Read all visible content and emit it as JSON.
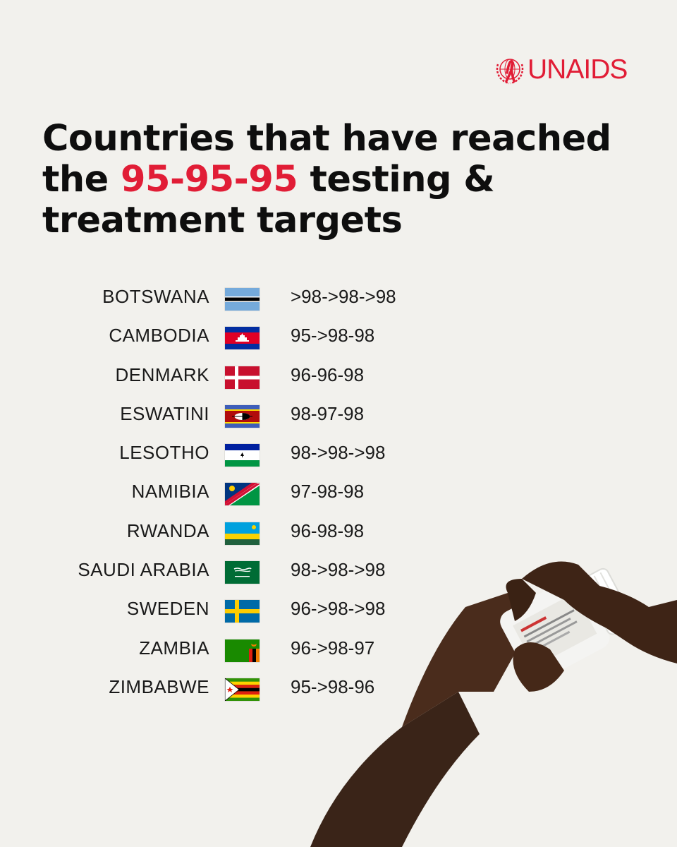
{
  "logo": {
    "text_un": "UN",
    "text_aids": "AIDS",
    "emblem_icon": "red-ribbon-wreath-icon",
    "brand_color": "#e11d36"
  },
  "title": {
    "line1": "Countries that have reached",
    "line2_pre": "the ",
    "line2_highlight": "95-95-95",
    "line2_post": " testing &",
    "line3": "treatment targets",
    "highlight_color": "#e11d36"
  },
  "rows": [
    {
      "country": "BOTSWANA",
      "flag_icon": "botswana-flag-icon",
      "value": ">98->98->98"
    },
    {
      "country": "CAMBODIA",
      "flag_icon": "cambodia-flag-icon",
      "value": "95->98-98"
    },
    {
      "country": "DENMARK",
      "flag_icon": "denmark-flag-icon",
      "value": "96-96-98"
    },
    {
      "country": "ESWATINI",
      "flag_icon": "eswatini-flag-icon",
      "value": "98-97-98"
    },
    {
      "country": "LESOTHO",
      "flag_icon": "lesotho-flag-icon",
      "value": "98->98->98"
    },
    {
      "country": "NAMIBIA",
      "flag_icon": "namibia-flag-icon",
      "value": "97-98-98"
    },
    {
      "country": "RWANDA",
      "flag_icon": "rwanda-flag-icon",
      "value": "96-98-98"
    },
    {
      "country": "SAUDI ARABIA",
      "flag_icon": "saudi-arabia-flag-icon",
      "value": "98->98->98"
    },
    {
      "country": "SWEDEN",
      "flag_icon": "sweden-flag-icon",
      "value": "96->98->98"
    },
    {
      "country": "ZAMBIA",
      "flag_icon": "zambia-flag-icon",
      "value": "96->98-97"
    },
    {
      "country": "ZIMBABWE",
      "flag_icon": "zimbabwe-flag-icon",
      "value": "95->98-96"
    }
  ],
  "photo": {
    "icon": "hands-opening-pill-bottle-icon"
  }
}
